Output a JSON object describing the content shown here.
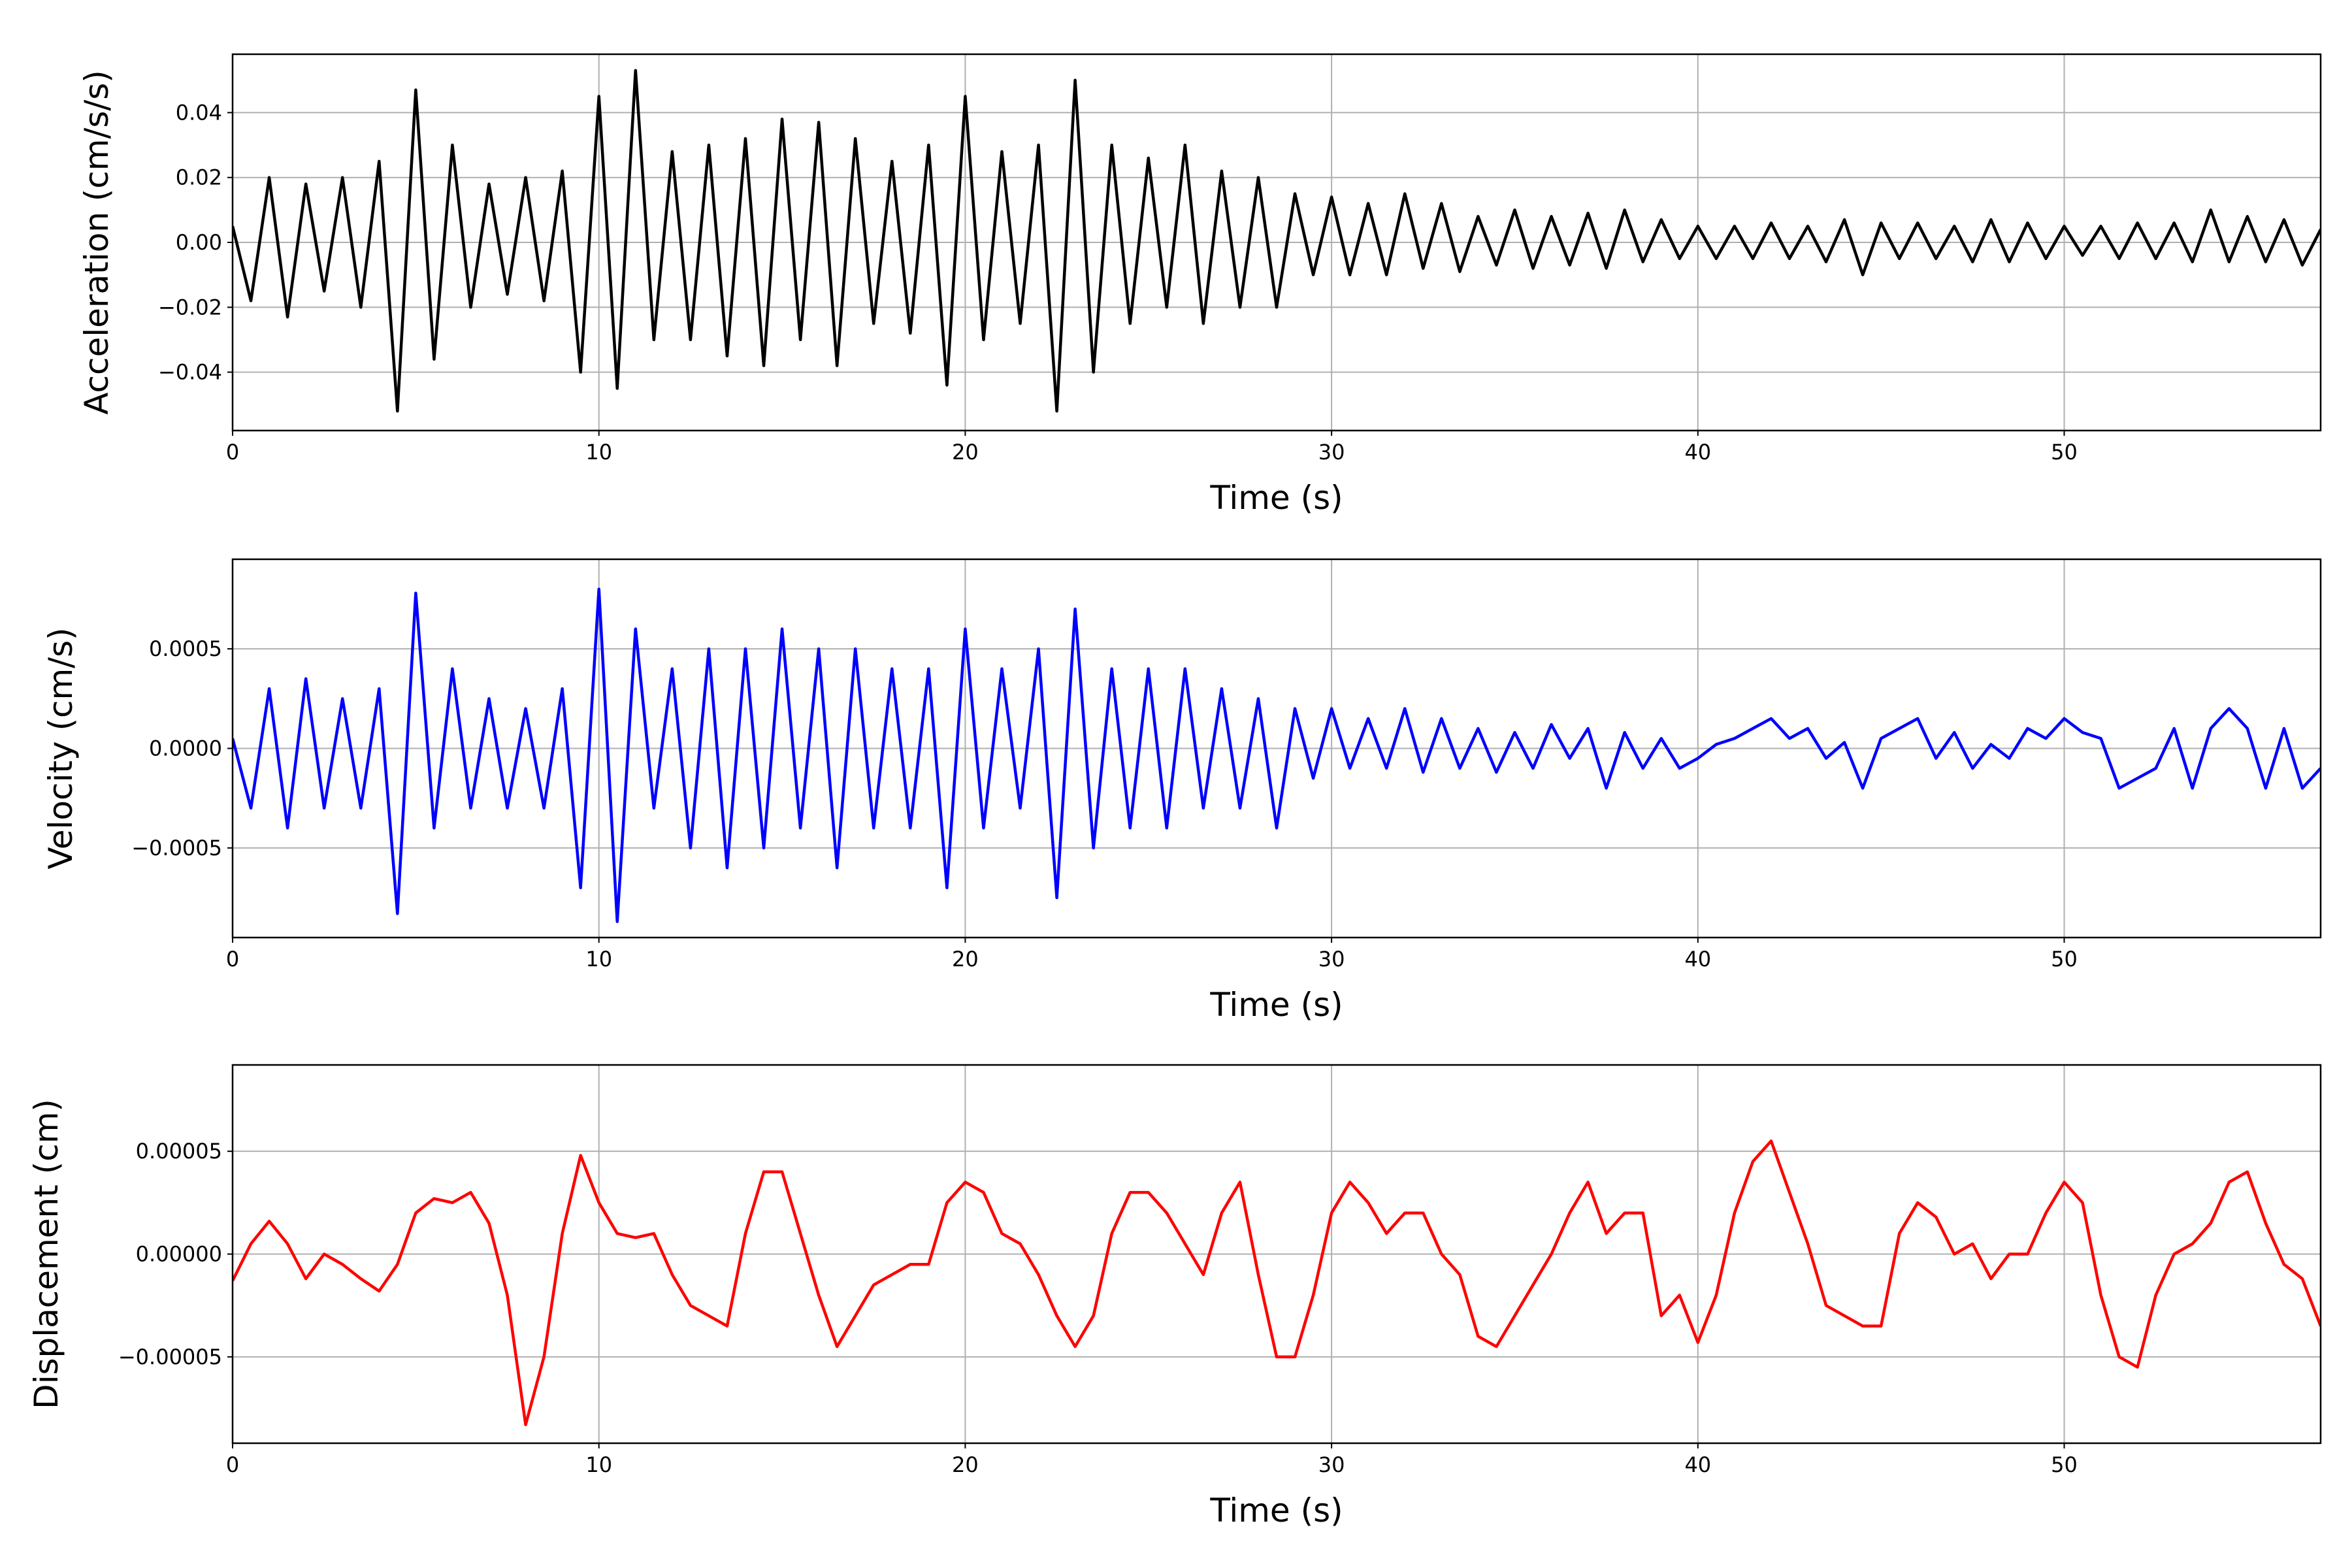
{
  "chart_data": [
    {
      "type": "line",
      "xlabel": "Time (s)",
      "ylabel": "Acceleration (cm/s/s)",
      "color": "#000000",
      "grid": true,
      "xlim": [
        0,
        57
      ],
      "xticks": [
        0,
        10,
        20,
        30,
        40,
        50
      ],
      "ylim": [
        -0.058,
        0.058
      ],
      "yticks": [
        {
          "value": -0.04,
          "label": "−0.04"
        },
        {
          "value": -0.02,
          "label": "−0.02"
        },
        {
          "value": 0,
          "label": "0.00"
        },
        0.02,
        0.04
      ],
      "x": [
        0,
        0.5,
        1,
        1.5,
        2,
        2.5,
        3,
        3.5,
        4,
        4.5,
        5,
        5.5,
        6,
        6.5,
        7,
        7.5,
        8,
        8.5,
        9,
        9.5,
        10,
        10.5,
        11,
        11.5,
        12,
        12.5,
        13,
        13.5,
        14,
        14.5,
        15,
        15.5,
        16,
        16.5,
        17,
        17.5,
        18,
        18.5,
        19,
        19.5,
        20,
        20.5,
        21,
        21.5,
        22,
        22.5,
        23,
        23.5,
        24,
        24.5,
        25,
        25.5,
        26,
        26.5,
        27,
        27.5,
        28,
        28.5,
        29,
        29.5,
        30,
        30.5,
        31,
        31.5,
        32,
        32.5,
        33,
        33.5,
        34,
        34.5,
        35,
        35.5,
        36,
        36.5,
        37,
        37.5,
        38,
        38.5,
        39,
        39.5,
        40,
        40.5,
        41,
        41.5,
        42,
        42.5,
        43,
        43.5,
        44,
        44.5,
        45,
        45.5,
        46,
        46.5,
        47,
        47.5,
        48,
        48.5,
        49,
        49.5,
        50,
        50.5,
        51,
        51.5,
        52,
        52.5,
        53,
        53.5,
        54,
        54.5,
        55,
        55.5,
        56,
        56.5,
        57
      ],
      "values": [
        0.005,
        -0.018,
        0.02,
        -0.023,
        0.018,
        -0.015,
        0.02,
        -0.02,
        0.025,
        -0.052,
        0.047,
        -0.036,
        0.03,
        -0.02,
        0.018,
        -0.016,
        0.02,
        -0.018,
        0.022,
        -0.04,
        0.045,
        -0.045,
        0.053,
        -0.03,
        0.028,
        -0.03,
        0.03,
        -0.035,
        0.032,
        -0.038,
        0.038,
        -0.03,
        0.037,
        -0.038,
        0.032,
        -0.025,
        0.025,
        -0.028,
        0.03,
        -0.044,
        0.045,
        -0.03,
        0.028,
        -0.025,
        0.03,
        -0.052,
        0.05,
        -0.04,
        0.03,
        -0.025,
        0.026,
        -0.02,
        0.03,
        -0.025,
        0.022,
        -0.02,
        0.02,
        -0.02,
        0.015,
        -0.01,
        0.014,
        -0.01,
        0.012,
        -0.01,
        0.015,
        -0.008,
        0.012,
        -0.009,
        0.008,
        -0.007,
        0.01,
        -0.008,
        0.008,
        -0.007,
        0.009,
        -0.008,
        0.01,
        -0.006,
        0.007,
        -0.005,
        0.005,
        -0.005,
        0.005,
        -0.005,
        0.006,
        -0.005,
        0.005,
        -0.006,
        0.007,
        -0.01,
        0.006,
        -0.005,
        0.006,
        -0.005,
        0.005,
        -0.006,
        0.007,
        -0.006,
        0.006,
        -0.005,
        0.005,
        -0.004,
        0.005,
        -0.005,
        0.006,
        -0.005,
        0.006,
        -0.006,
        0.01,
        -0.006,
        0.008,
        -0.006,
        0.007,
        -0.007,
        0.004
      ]
    },
    {
      "type": "line",
      "xlabel": "Time (s)",
      "ylabel": "Velocity (cm/s)",
      "color": "#0000ff",
      "grid": true,
      "xlim": [
        0,
        57
      ],
      "xticks": [
        0,
        10,
        20,
        30,
        40,
        50
      ],
      "ylim": [
        -0.00095,
        0.00095
      ],
      "yticks": [
        {
          "value": -0.0005,
          "label": "−0.0005"
        },
        {
          "value": 0,
          "label": "0.0000"
        },
        0.0005
      ],
      "x": [
        0,
        0.5,
        1,
        1.5,
        2,
        2.5,
        3,
        3.5,
        4,
        4.5,
        5,
        5.5,
        6,
        6.5,
        7,
        7.5,
        8,
        8.5,
        9,
        9.5,
        10,
        10.5,
        11,
        11.5,
        12,
        12.5,
        13,
        13.5,
        14,
        14.5,
        15,
        15.5,
        16,
        16.5,
        17,
        17.5,
        18,
        18.5,
        19,
        19.5,
        20,
        20.5,
        21,
        21.5,
        22,
        22.5,
        23,
        23.5,
        24,
        24.5,
        25,
        25.5,
        26,
        26.5,
        27,
        27.5,
        28,
        28.5,
        29,
        29.5,
        30,
        30.5,
        31,
        31.5,
        32,
        32.5,
        33,
        33.5,
        34,
        34.5,
        35,
        35.5,
        36,
        36.5,
        37,
        37.5,
        38,
        38.5,
        39,
        39.5,
        40,
        40.5,
        41,
        41.5,
        42,
        42.5,
        43,
        43.5,
        44,
        44.5,
        45,
        45.5,
        46,
        46.5,
        47,
        47.5,
        48,
        48.5,
        49,
        49.5,
        50,
        50.5,
        51,
        51.5,
        52,
        52.5,
        53,
        53.5,
        54,
        54.5,
        55,
        55.5,
        56,
        56.5,
        57
      ],
      "values": [
        5e-05,
        -0.0003,
        0.0003,
        -0.0004,
        0.00035,
        -0.0003,
        0.00025,
        -0.0003,
        0.0003,
        -0.00083,
        0.00078,
        -0.0004,
        0.0004,
        -0.0003,
        0.00025,
        -0.0003,
        0.0002,
        -0.0003,
        0.0003,
        -0.0007,
        0.0008,
        -0.00087,
        0.0006,
        -0.0003,
        0.0004,
        -0.0005,
        0.0005,
        -0.0006,
        0.0005,
        -0.0005,
        0.0006,
        -0.0004,
        0.0005,
        -0.0006,
        0.0005,
        -0.0004,
        0.0004,
        -0.0004,
        0.0004,
        -0.0007,
        0.0006,
        -0.0004,
        0.0004,
        -0.0003,
        0.0005,
        -0.00075,
        0.0007,
        -0.0005,
        0.0004,
        -0.0004,
        0.0004,
        -0.0004,
        0.0004,
        -0.0003,
        0.0003,
        -0.0003,
        0.00025,
        -0.0004,
        0.0002,
        -0.00015,
        0.0002,
        -0.0001,
        0.00015,
        -0.0001,
        0.0002,
        -0.00012,
        0.00015,
        -0.0001,
        0.0001,
        -0.00012,
        8e-05,
        -0.0001,
        0.00012,
        -5e-05,
        0.0001,
        -0.0002,
        8e-05,
        -0.0001,
        5e-05,
        -0.0001,
        -5e-05,
        2e-05,
        5e-05,
        0.0001,
        0.00015,
        5e-05,
        0.0001,
        -5e-05,
        3e-05,
        -0.0002,
        5e-05,
        0.0001,
        0.00015,
        -5e-05,
        8e-05,
        -0.0001,
        2e-05,
        -5e-05,
        0.0001,
        5e-05,
        0.00015,
        8e-05,
        5e-05,
        -0.0002,
        -0.00015,
        -0.0001,
        0.0001,
        -0.0002,
        0.0001,
        0.0002,
        0.0001,
        -0.0002,
        0.0001,
        -0.0002,
        -0.0001
      ]
    },
    {
      "type": "line",
      "xlabel": "Time (s)",
      "ylabel": "Displacement (cm)",
      "color": "#ff0000",
      "grid": true,
      "xlim": [
        0,
        57
      ],
      "xticks": [
        0,
        10,
        20,
        30,
        40,
        50
      ],
      "ylim": [
        -9.2e-05,
        9.2e-05
      ],
      "yticks": [
        {
          "value": -5e-05,
          "label": "−0.00005"
        },
        {
          "value": 0,
          "label": "0.00000"
        },
        5e-05
      ],
      "x": [
        0,
        0.5,
        1,
        1.5,
        2,
        2.5,
        3,
        3.5,
        4,
        4.5,
        5,
        5.5,
        6,
        6.5,
        7,
        7.5,
        8,
        8.5,
        9,
        9.5,
        10,
        10.5,
        11,
        11.5,
        12,
        12.5,
        13,
        13.5,
        14,
        14.5,
        15,
        15.5,
        16,
        16.5,
        17,
        17.5,
        18,
        18.5,
        19,
        19.5,
        20,
        20.5,
        21,
        21.5,
        22,
        22.5,
        23,
        23.5,
        24,
        24.5,
        25,
        25.5,
        26,
        26.5,
        27,
        27.5,
        28,
        28.5,
        29,
        29.5,
        30,
        30.5,
        31,
        31.5,
        32,
        32.5,
        33,
        33.5,
        34,
        34.5,
        35,
        35.5,
        36,
        36.5,
        37,
        37.5,
        38,
        38.5,
        39,
        39.5,
        40,
        40.5,
        41,
        41.5,
        42,
        42.5,
        43,
        43.5,
        44,
        44.5,
        45,
        45.5,
        46,
        46.5,
        47,
        47.5,
        48,
        48.5,
        49,
        49.5,
        50,
        50.5,
        51,
        51.5,
        52,
        52.5,
        53,
        53.5,
        54,
        54.5,
        55,
        55.5,
        56,
        56.5,
        57
      ],
      "values": [
        -1.3e-05,
        5e-06,
        1.6e-05,
        5e-06,
        -1.2e-05,
        0,
        -5e-06,
        -1.2e-05,
        -1.8e-05,
        -5e-06,
        2e-05,
        2.7e-05,
        2.5e-05,
        3e-05,
        1.5e-05,
        -2e-05,
        -8.3e-05,
        -5e-05,
        1e-05,
        4.8e-05,
        2.5e-05,
        1e-05,
        8e-06,
        1e-05,
        -1e-05,
        -2.5e-05,
        -3e-05,
        -3.5e-05,
        1e-05,
        4e-05,
        4e-05,
        1e-05,
        -2e-05,
        -4.5e-05,
        -3e-05,
        -1.5e-05,
        -1e-05,
        -5e-06,
        -5e-06,
        2.5e-05,
        3.5e-05,
        3e-05,
        1e-05,
        5e-06,
        -1e-05,
        -3e-05,
        -4.5e-05,
        -3e-05,
        1e-05,
        3e-05,
        3e-05,
        2e-05,
        5e-06,
        -1e-05,
        2e-05,
        3.5e-05,
        -1e-05,
        -5e-05,
        -5e-05,
        -2e-05,
        2e-05,
        3.5e-05,
        2.5e-05,
        1e-05,
        2e-05,
        2e-05,
        0,
        -1e-05,
        -4e-05,
        -4.5e-05,
        -3e-05,
        -1.5e-05,
        0,
        2e-05,
        3.5e-05,
        1e-05,
        2e-05,
        2e-05,
        -3e-05,
        -2e-05,
        -4.3e-05,
        -2e-05,
        2e-05,
        4.5e-05,
        5.5e-05,
        3e-05,
        5e-06,
        -2.5e-05,
        -3e-05,
        -3.5e-05,
        -3.5e-05,
        1e-05,
        2.5e-05,
        1.8e-05,
        0,
        5e-06,
        -1.2e-05,
        0,
        0,
        2e-05,
        3.5e-05,
        2.5e-05,
        -2e-05,
        -5e-05,
        -5.5e-05,
        -2e-05,
        0,
        5e-06,
        1.5e-05,
        3.5e-05,
        4e-05,
        1.5e-05,
        -5e-06,
        -1.2e-05,
        -3.5e-05
      ]
    }
  ]
}
